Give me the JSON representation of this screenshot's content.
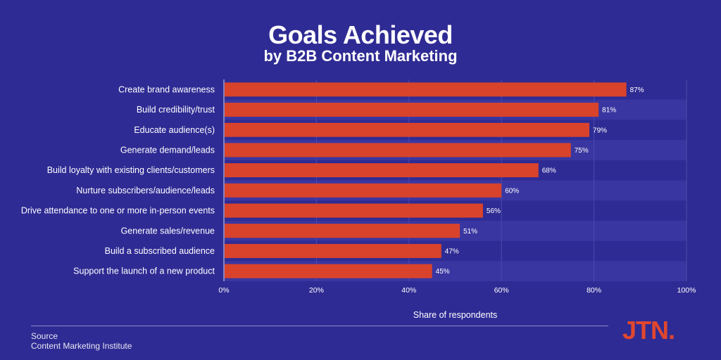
{
  "chart_data": {
    "type": "bar",
    "orientation": "horizontal",
    "title": "Goals Achieved",
    "subtitle": "by B2B Content Marketing",
    "categories": [
      "Create brand awareness",
      "Build credibility/trust",
      "Educate audience(s)",
      "Generate demand/leads",
      "Build loyalty with existing clients/customers",
      "Nurture subscribers/audience/leads",
      "Drive attendance to one or more in-person events",
      "Generate sales/revenue",
      "Build a subscribed audience",
      "Support the launch of a new product"
    ],
    "values": [
      87,
      81,
      79,
      75,
      68,
      60,
      56,
      51,
      47,
      45
    ],
    "data_labels": [
      "87%",
      "81%",
      "79%",
      "75%",
      "68%",
      "60%",
      "56%",
      "51%",
      "47%",
      "45%"
    ],
    "xlabel": "Share of respondents",
    "ylabel": "",
    "xlim": [
      0,
      100
    ],
    "x_ticks": [
      0,
      20,
      40,
      60,
      80,
      100
    ],
    "x_tick_labels": [
      "0%",
      "20%",
      "40%",
      "60%",
      "80%",
      "100%"
    ],
    "grid": true,
    "bar_color": "#d9432b",
    "background_color": "#2f2b94",
    "stripe_color": "#3a36a1"
  },
  "source": {
    "label": "Source",
    "value": "Content Marketing Institute"
  },
  "logo": {
    "text": "JTN.",
    "color": "#e0472f"
  }
}
